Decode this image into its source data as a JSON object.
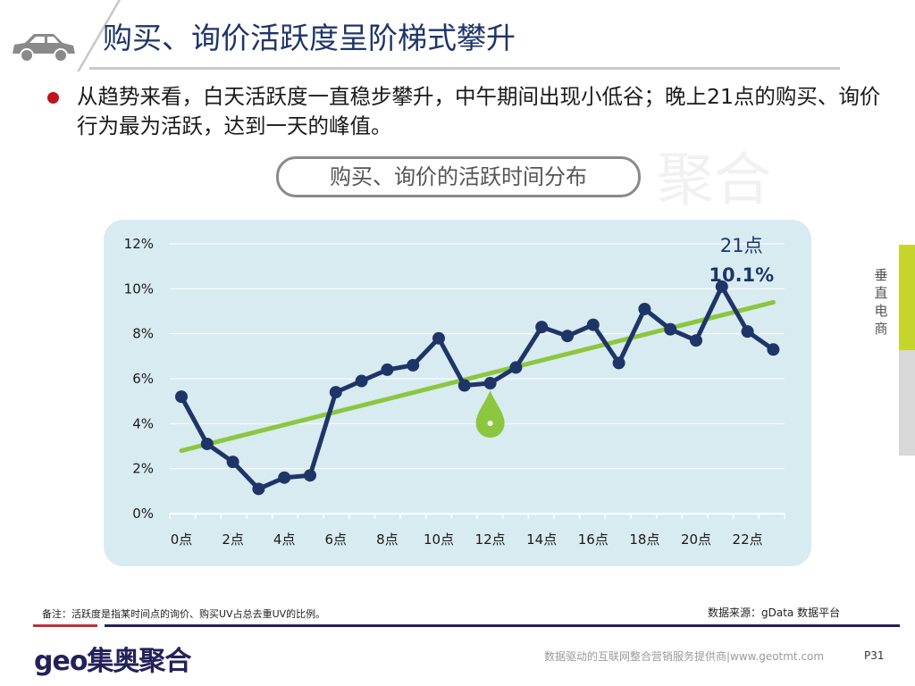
{
  "header": {
    "title": "购买、询价活跃度呈阶梯式攀升",
    "icon": "car-icon"
  },
  "description": "从趋势来看，白天活跃度一直稳步攀升，中午期间出现小低谷；晚上21点的购买、询价行为最为活跃，达到一天的峰值。",
  "chart_data": {
    "type": "line",
    "title": "购买、询价的活跃时间分布",
    "x": [
      "0点",
      "1点",
      "2点",
      "3点",
      "4点",
      "5点",
      "6点",
      "7点",
      "8点",
      "9点",
      "10点",
      "11点",
      "12点",
      "13点",
      "14点",
      "15点",
      "16点",
      "17点",
      "18点",
      "19点",
      "20点",
      "21点",
      "22点",
      "23点"
    ],
    "xtick_labels": [
      "0点",
      "2点",
      "4点",
      "6点",
      "8点",
      "10点",
      "12点",
      "14点",
      "16点",
      "18点",
      "20点",
      "22点"
    ],
    "series": [
      {
        "values": [
          5.2,
          3.1,
          2.3,
          1.1,
          1.6,
          1.7,
          5.4,
          5.9,
          6.4,
          6.6,
          7.8,
          5.7,
          5.8,
          6.5,
          8.3,
          7.9,
          8.4,
          6.7,
          9.1,
          8.2,
          7.7,
          10.1,
          8.1,
          7.3
        ],
        "color": "#1f3568"
      }
    ],
    "trendline": {
      "start": 2.8,
      "end": 9.4,
      "color": "#8cc63f"
    },
    "ylim": [
      0,
      12
    ],
    "ytick_labels": [
      "0%",
      "2%",
      "4%",
      "6%",
      "8%",
      "10%",
      "12%"
    ],
    "annotation": {
      "label": "21点",
      "value": "10.1%"
    },
    "marker": {
      "at": "12点",
      "icon": "drop-icon",
      "color": "#8cc63f"
    },
    "grid": true
  },
  "side_tab": {
    "label": "垂直电商",
    "colors": [
      "#c5d52b",
      "#d9d9d9"
    ]
  },
  "footer": {
    "note": "备注：活跃度是指某时间点的询价、购买UV占总去重UV的比例。",
    "source": "数据来源：gData  数据平台",
    "logo": "geo集奥聚合",
    "slogan": "数据驱动的互联网整合营销服务提供商|www.geotmt.com",
    "page": "P31"
  },
  "watermark": "集奥聚合"
}
